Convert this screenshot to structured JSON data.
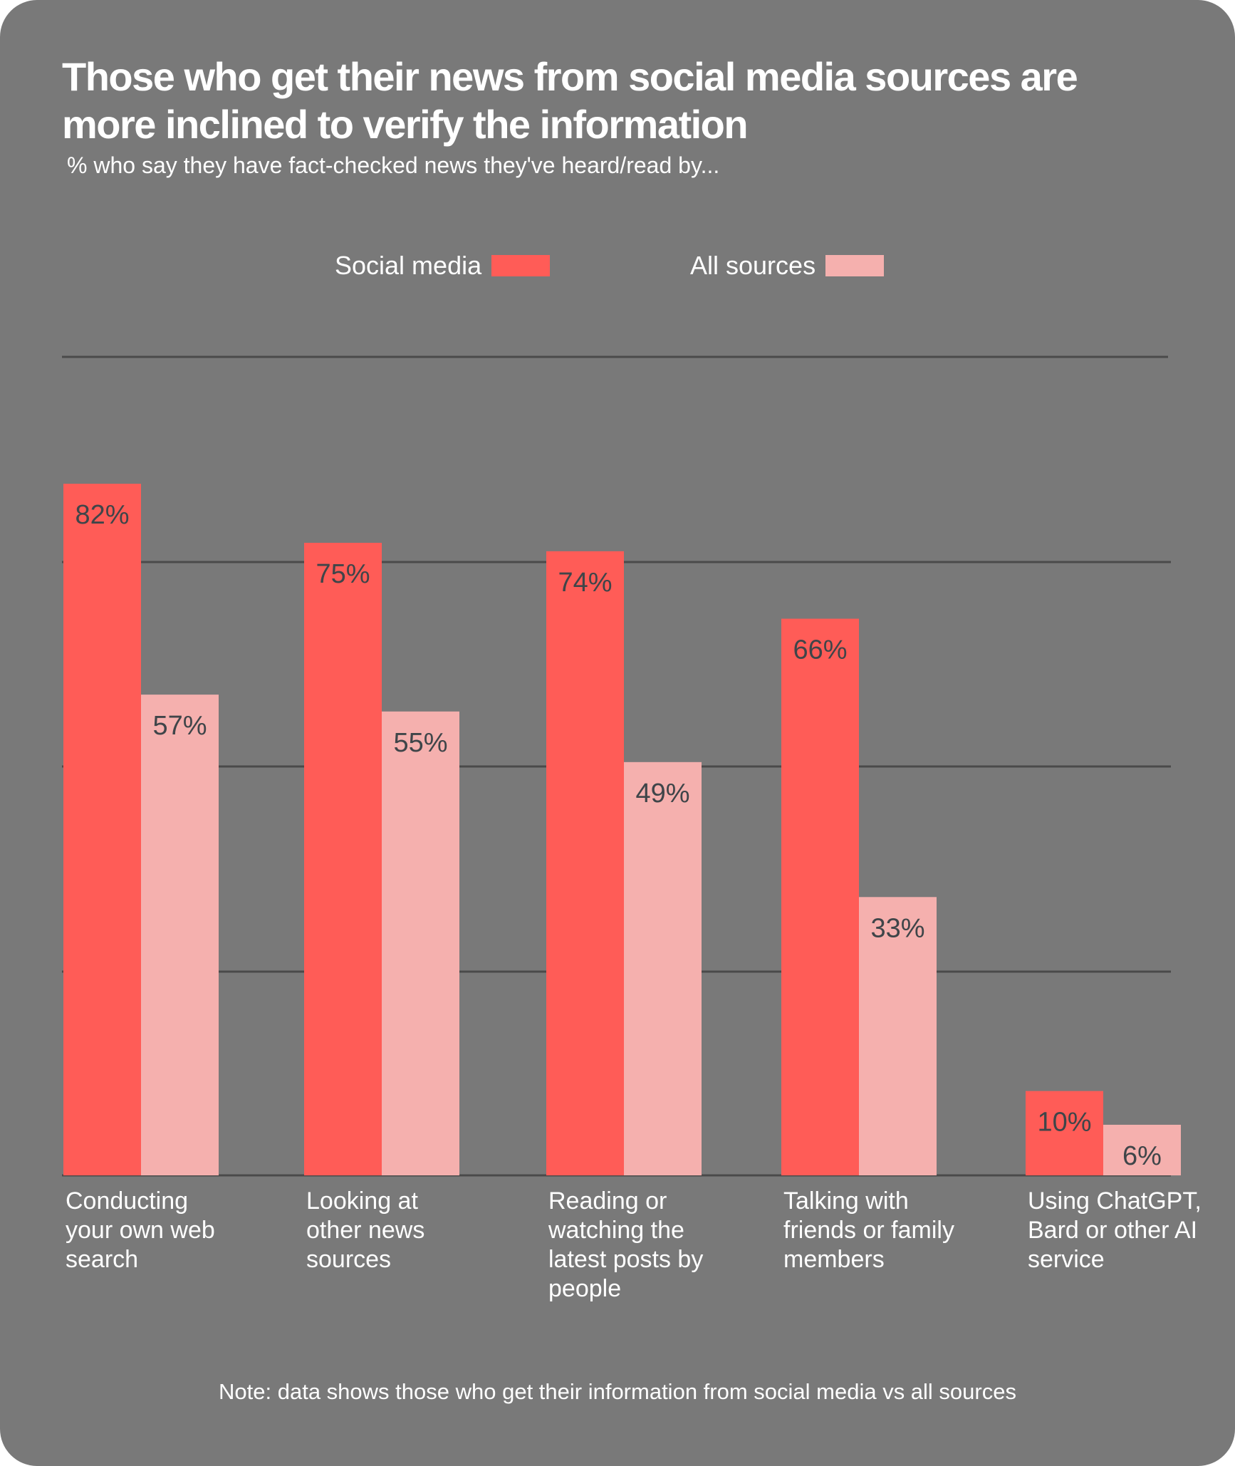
{
  "chart_data": {
    "type": "bar",
    "title": "Those who get their news from social media sources are more inclined to verify the information",
    "subtitle": "% who say they have fact-checked news they've heard/read by...",
    "categories": [
      "Conducting your own web search",
      "Looking at other news sources",
      "Reading or watching the latest posts by people",
      "Talking with friends or family members",
      "Using ChatGPT, Bard or other AI service"
    ],
    "series": [
      {
        "name": "Social media",
        "color": "#ff5c57",
        "values": [
          82,
          75,
          74,
          66,
          10
        ]
      },
      {
        "name": "All sources",
        "color": "#f5b0ae",
        "values": [
          57,
          55,
          49,
          33,
          6
        ]
      }
    ],
    "ylim": [
      0,
      100
    ],
    "value_suffix": "%",
    "grid": true,
    "legend": "top-center",
    "note": "Note:  data shows those who get their information from social media vs all sources"
  }
}
